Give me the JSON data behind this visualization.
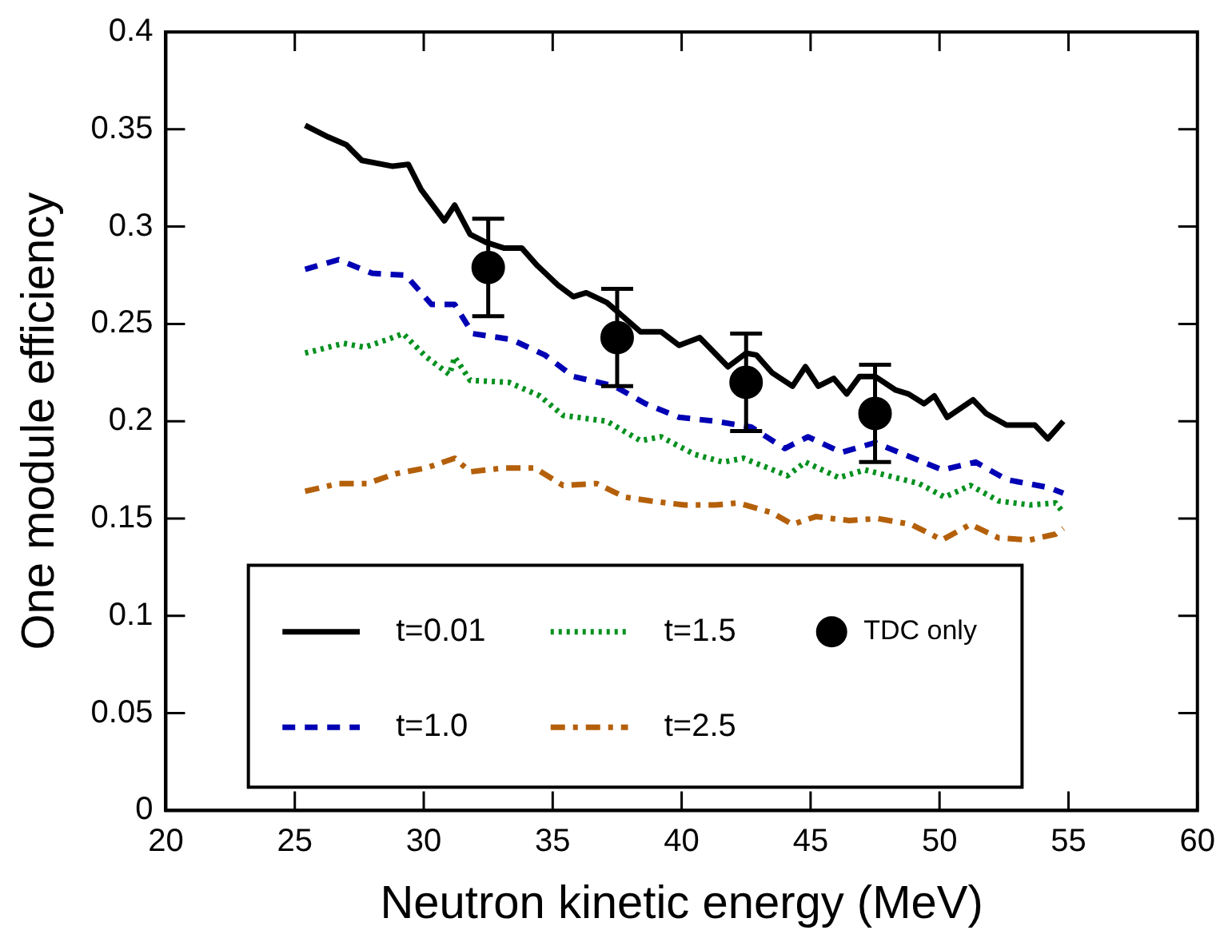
{
  "chart_data": {
    "type": "line",
    "xlabel": "Neutron kinetic energy (MeV)",
    "ylabel": "One module efficiency",
    "xlim": [
      20,
      60
    ],
    "xticks": [
      20,
      25,
      30,
      35,
      40,
      45,
      50,
      55,
      60
    ],
    "ylim": [
      0,
      0.4
    ],
    "yticks": [
      0,
      0.05,
      0.1,
      0.15,
      0.2,
      0.25,
      0.3,
      0.35,
      0.4
    ],
    "grid": false,
    "legend": "bottom",
    "marker": "none",
    "series": [
      {
        "name": "t=0.01",
        "color": "#000000",
        "line_style": "solid",
        "x": [
          25.4,
          26.3,
          27.0,
          27.6,
          28.8,
          29.4,
          29.9,
          30.8,
          31.2,
          31.8,
          32.4,
          33.1,
          33.8,
          34.4,
          35.2,
          35.8,
          36.3,
          37.1,
          38.4,
          39.2,
          39.9,
          40.7,
          41.8,
          42.5,
          42.9,
          43.5,
          44.3,
          44.8,
          45.3,
          45.9,
          46.4,
          46.9,
          47.5,
          48.3,
          48.8,
          49.4,
          49.8,
          50.3,
          51.3,
          51.8,
          52.6,
          53.7,
          54.2,
          54.8
        ],
        "values": [
          0.352,
          0.346,
          0.342,
          0.334,
          0.331,
          0.332,
          0.319,
          0.303,
          0.311,
          0.296,
          0.292,
          0.289,
          0.289,
          0.28,
          0.27,
          0.264,
          0.266,
          0.261,
          0.246,
          0.246,
          0.239,
          0.243,
          0.228,
          0.235,
          0.234,
          0.225,
          0.218,
          0.228,
          0.218,
          0.222,
          0.214,
          0.223,
          0.223,
          0.216,
          0.214,
          0.209,
          0.213,
          0.202,
          0.211,
          0.204,
          0.198,
          0.198,
          0.191,
          0.2
        ]
      },
      {
        "name": "t=1.0",
        "color": "#0000b4",
        "line_style": "dashed",
        "x": [
          25.4,
          26.7,
          28.0,
          29.3,
          30.3,
          31.2,
          31.9,
          33.4,
          34.7,
          35.8,
          37.4,
          38.6,
          39.9,
          41.3,
          42.7,
          44.0,
          44.9,
          46.2,
          47.5,
          48.8,
          50.1,
          51.4,
          52.6,
          54.2,
          54.8
        ],
        "values": [
          0.278,
          0.283,
          0.276,
          0.275,
          0.26,
          0.26,
          0.245,
          0.242,
          0.234,
          0.223,
          0.218,
          0.209,
          0.202,
          0.2,
          0.197,
          0.186,
          0.192,
          0.184,
          0.189,
          0.182,
          0.175,
          0.179,
          0.17,
          0.166,
          0.163
        ]
      },
      {
        "name": "t=1.5",
        "color": "#00901e",
        "line_style": "dotted",
        "x": [
          25.4,
          26.9,
          27.7,
          28.6,
          29.2,
          30.1,
          31.0,
          31.2,
          31.8,
          33.3,
          34.5,
          35.4,
          37.1,
          38.4,
          39.2,
          40.5,
          41.6,
          42.4,
          44.1,
          44.8,
          46.1,
          47.1,
          49.2,
          50.2,
          51.2,
          52.3,
          53.5,
          54.5,
          54.8
        ],
        "values": [
          0.235,
          0.24,
          0.238,
          0.242,
          0.245,
          0.233,
          0.224,
          0.233,
          0.221,
          0.22,
          0.213,
          0.203,
          0.2,
          0.19,
          0.192,
          0.183,
          0.179,
          0.181,
          0.172,
          0.179,
          0.171,
          0.175,
          0.168,
          0.161,
          0.167,
          0.159,
          0.157,
          0.158,
          0.153
        ]
      },
      {
        "name": "t=2.5",
        "color": "#b4600a",
        "line_style": "dashdot",
        "x": [
          25.4,
          26.7,
          27.8,
          28.9,
          30.1,
          31.2,
          31.8,
          33.1,
          34.3,
          35.4,
          36.7,
          37.8,
          38.8,
          40.1,
          41.3,
          42.2,
          43.5,
          44.3,
          45.2,
          46.5,
          47.6,
          48.9,
          50.1,
          51.2,
          52.3,
          53.5,
          54.5,
          54.8
        ],
        "values": [
          0.164,
          0.168,
          0.168,
          0.173,
          0.176,
          0.181,
          0.174,
          0.176,
          0.176,
          0.167,
          0.168,
          0.161,
          0.159,
          0.157,
          0.157,
          0.158,
          0.153,
          0.147,
          0.151,
          0.149,
          0.15,
          0.147,
          0.139,
          0.147,
          0.14,
          0.139,
          0.142,
          0.145
        ]
      },
      {
        "name": "TDC only",
        "type": "scatter",
        "marker": "circle",
        "color": "#000000",
        "x": [
          32.5,
          37.5,
          42.5,
          47.5
        ],
        "values": [
          0.279,
          0.243,
          0.22,
          0.204
        ],
        "errors": [
          0.025,
          0.025,
          0.025,
          0.025
        ]
      }
    ]
  }
}
